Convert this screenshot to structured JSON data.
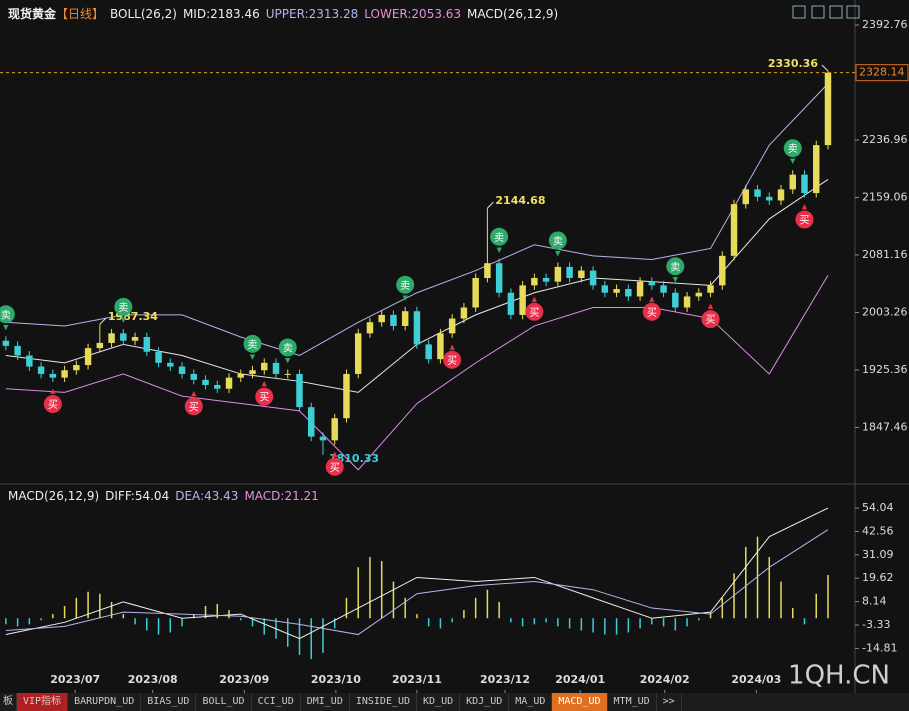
{
  "header": {
    "title": "现货黄金",
    "period": "【日线】",
    "boll": "BOLL(26,2)",
    "mid_label": "MID:",
    "upper_label": "UPPER:",
    "lower_label": "LOWER:",
    "macd": "MACD(26,12,9)",
    "diff_label": "DIFF:",
    "dea_label": "DEA:",
    "hist_label": "MACD:"
  },
  "chart_data": {
    "type": "candlestick",
    "open": [
      1965,
      1958,
      1945,
      1930,
      1920,
      1915,
      1925,
      1932,
      1955,
      1962,
      1975,
      1965,
      1970,
      1950,
      1935,
      1930,
      1920,
      1912,
      1905,
      1900,
      1915,
      1920,
      1925,
      1935,
      1920,
      1920,
      1875,
      1835,
      1830,
      1860,
      1920,
      1975,
      1990,
      2000,
      1985,
      2005,
      1960,
      1940,
      1975,
      1995,
      2010,
      2050,
      2070,
      2030,
      2000,
      2040,
      2050,
      2045,
      2065,
      2050,
      2060,
      2040,
      2030,
      2035,
      2025,
      2045,
      2040,
      2030,
      2010,
      2025,
      2030,
      2040,
      2080,
      2150,
      2170,
      2160,
      2155,
      2170,
      2190,
      2165,
      2230
    ],
    "high": [
      1971,
      1964,
      1951,
      1936,
      1926,
      1931,
      1938,
      1961,
      1987.34,
      1981,
      1981,
      1976,
      1976,
      1956,
      1941,
      1936,
      1926,
      1918,
      1911,
      1921,
      1926,
      1931,
      1941,
      1941,
      1926,
      1926,
      1881,
      1841,
      1866,
      1926,
      1981,
      1996,
      2006,
      2006,
      2011,
      2011,
      1966,
      1981,
      2001,
      2016,
      2056,
      2144.68,
      2076,
      2036,
      2046,
      2056,
      2056,
      2071,
      2071,
      2066,
      2066,
      2046,
      2041,
      2041,
      2051,
      2051,
      2046,
      2036,
      2031,
      2036,
      2046,
      2086,
      2156,
      2176,
      2176,
      2166,
      2176,
      2196,
      2196,
      2236,
      2330.36
    ],
    "low": [
      1952,
      1939,
      1924,
      1914,
      1909,
      1909,
      1919,
      1926,
      1949,
      1956,
      1959,
      1959,
      1944,
      1929,
      1924,
      1914,
      1906,
      1899,
      1894,
      1894,
      1909,
      1914,
      1919,
      1914,
      1914,
      1869,
      1829,
      1810.33,
      1824,
      1854,
      1914,
      1969,
      1984,
      1979,
      1979,
      1954,
      1934,
      1934,
      1969,
      1989,
      2004,
      2044,
      2024,
      1994,
      1994,
      2034,
      2039,
      2039,
      2044,
      2044,
      2034,
      2024,
      2024,
      2019,
      2019,
      2034,
      2024,
      2004,
      2004,
      2019,
      2024,
      2034,
      2074,
      2144,
      2154,
      2149,
      2149,
      2164,
      2159,
      2159,
      2224
    ],
    "close": [
      1958,
      1945,
      1930,
      1920,
      1915,
      1925,
      1932,
      1955,
      1962,
      1975,
      1965,
      1970,
      1950,
      1935,
      1930,
      1920,
      1912,
      1905,
      1900,
      1915,
      1920,
      1925,
      1935,
      1920,
      1920,
      1875,
      1835,
      1830,
      1860,
      1920,
      1975,
      1990,
      2000,
      1985,
      2005,
      1960,
      1940,
      1975,
      1995,
      2010,
      2050,
      2070,
      2030,
      2000,
      2040,
      2050,
      2045,
      2065,
      2050,
      2060,
      2040,
      2030,
      2035,
      2025,
      2045,
      2040,
      2030,
      2010,
      2025,
      2030,
      2040,
      2080,
      2150,
      2170,
      2160,
      2155,
      2170,
      2190,
      2165,
      2230,
      2328.14
    ],
    "up_color": "#e6dc5a",
    "down_color": "#3ccfd6",
    "ylim": [
      1776.3,
      2426.6
    ],
    "yticks": [
      1847.46,
      1925.36,
      2003.26,
      2081.16,
      2159.06,
      2236.96,
      2392.76
    ],
    "xlim": [
      -0.5,
      72.3
    ],
    "xticks": [
      {
        "value": 5.9,
        "label": "2023/07"
      },
      {
        "value": 12.5,
        "label": "2023/08"
      },
      {
        "value": 20.3,
        "label": "2023/09"
      },
      {
        "value": 28.1,
        "label": "2023/10"
      },
      {
        "value": 35,
        "label": "2023/11"
      },
      {
        "value": 42.5,
        "label": "2023/12"
      },
      {
        "value": 48.9,
        "label": "2024/01"
      },
      {
        "value": 56.1,
        "label": "2024/02"
      },
      {
        "value": 63.9,
        "label": "2024/03"
      }
    ],
    "boll": {
      "x": [
        0,
        5,
        10,
        15,
        20,
        25,
        30,
        35,
        40,
        45,
        50,
        55,
        60,
        65,
        70
      ],
      "series": [
        {
          "name": "UPPER",
          "color": "#b9b2ee",
          "values": [
            1990,
            1985,
            2000,
            2000,
            1970,
            1945,
            1990,
            2030,
            2060,
            2095,
            2080,
            2075,
            2090,
            2230,
            2313.28
          ]
        },
        {
          "name": "MID",
          "color": "#e8e8e8",
          "values": [
            1945,
            1935,
            1960,
            1945,
            1920,
            1910,
            1895,
            1960,
            2000,
            2030,
            2050,
            2045,
            2040,
            2130,
            2183.46
          ]
        },
        {
          "name": "LOWER",
          "color": "#d88ee4",
          "values": [
            1900,
            1895,
            1920,
            1890,
            1880,
            1870,
            1790,
            1880,
            1935,
            1985,
            2010,
            2010,
            1995,
            1920,
            2053.63
          ]
        }
      ]
    },
    "signals": [
      {
        "label": "卖",
        "index": 0
      },
      {
        "label": "卖",
        "index": 10
      },
      {
        "label": "卖",
        "index": 21
      },
      {
        "label": "卖",
        "index": 24
      },
      {
        "label": "卖",
        "index": 34
      },
      {
        "label": "卖",
        "index": 42
      },
      {
        "label": "卖",
        "index": 47
      },
      {
        "label": "卖",
        "index": 57
      },
      {
        "label": "卖",
        "index": 67
      },
      {
        "label": "买",
        "index": 4
      },
      {
        "label": "买",
        "index": 16
      },
      {
        "label": "买",
        "index": 22
      },
      {
        "label": "买",
        "index": 28
      },
      {
        "label": "买",
        "index": 38
      },
      {
        "label": "买",
        "index": 45
      },
      {
        "label": "买",
        "index": 55
      },
      {
        "label": "买",
        "index": 60
      },
      {
        "label": "买",
        "index": 68
      }
    ],
    "annotated_highs": [
      70,
      41,
      8
    ],
    "annotated_lows": [
      27
    ],
    "macd": {
      "ylim": [
        -35.2,
        62.9
      ],
      "yticks": [
        -14.81,
        -3.33,
        8.14,
        19.62,
        31.09,
        42.56,
        54.04
      ],
      "hist": [
        -3,
        -4,
        -3,
        -1,
        2,
        6,
        10,
        13,
        12,
        8,
        2,
        -3,
        -6,
        -8,
        -7,
        -4,
        2,
        6,
        7,
        4,
        -1,
        -4,
        -8,
        -10,
        -14,
        -18,
        -20,
        -17,
        -5,
        10,
        25,
        30,
        28,
        18,
        10,
        2,
        -4,
        -5,
        -2,
        4,
        10,
        14,
        8,
        -2,
        -4,
        -3,
        -2,
        -4,
        -5,
        -6,
        -7,
        -8,
        -8,
        -7,
        -5,
        -3,
        -4,
        -6,
        -4,
        -1,
        3,
        10,
        22,
        35,
        40,
        30,
        18,
        5,
        -3,
        12,
        21.21
      ],
      "x": [
        0,
        5,
        10,
        15,
        20,
        25,
        30,
        35,
        40,
        45,
        50,
        55,
        60,
        65,
        70
      ],
      "series": [
        {
          "name": "DIFF",
          "color": "#f0f0f0",
          "values": [
            -8,
            -2,
            8,
            0,
            2,
            -10,
            5,
            20,
            18,
            20,
            10,
            0,
            3,
            40,
            54.04
          ]
        },
        {
          "name": "DEA",
          "color": "#b9b2ee",
          "values": [
            -6,
            -4,
            3,
            2,
            1,
            -3,
            -8,
            12,
            16,
            18,
            14,
            5,
            2,
            25,
            43.43
          ]
        }
      ]
    }
  },
  "watermark": "1QH.CN",
  "side_label": "板",
  "tabs": [
    "VIP指标",
    "BARUPDN_UD",
    "BIAS_UD",
    "BOLL_UD",
    "CCI_UD",
    "DMI_UD",
    "INSIDE_UD",
    "KD_UD",
    "KDJ_UD",
    "MA_UD",
    "MACD_UD",
    "MTM_UD",
    ">>"
  ],
  "active_tab": 10
}
